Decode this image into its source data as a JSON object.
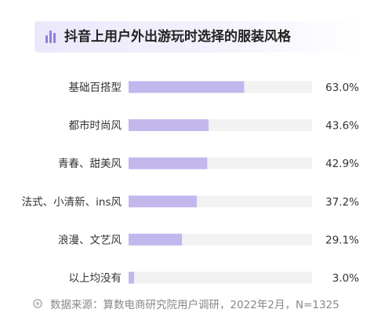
{
  "title": "抖音上用户外出游玩时选择的服装风格",
  "source": "数据来源：算数电商研究院用户调研，2022年2月，N=1325",
  "colors": {
    "bar": "#c2b8ee",
    "track": "#f2f2f2",
    "accent": "#8e7fe0"
  },
  "chart_data": {
    "type": "bar",
    "orientation": "horizontal",
    "title": "抖音上用户外出游玩时选择的服装风格",
    "categories": [
      "基础百搭型",
      "都市时尚风",
      "青春、甜美风",
      "法式、小清新、ins风",
      "浪漫、文艺风",
      "以上均没有"
    ],
    "values": [
      63.0,
      43.6,
      42.9,
      37.2,
      29.1,
      3.0
    ],
    "value_labels": [
      "63.0%",
      "43.6%",
      "42.9%",
      "37.2%",
      "29.1%",
      "3.0%"
    ],
    "xlim": [
      0,
      100
    ],
    "grid": false,
    "legend": "none"
  }
}
